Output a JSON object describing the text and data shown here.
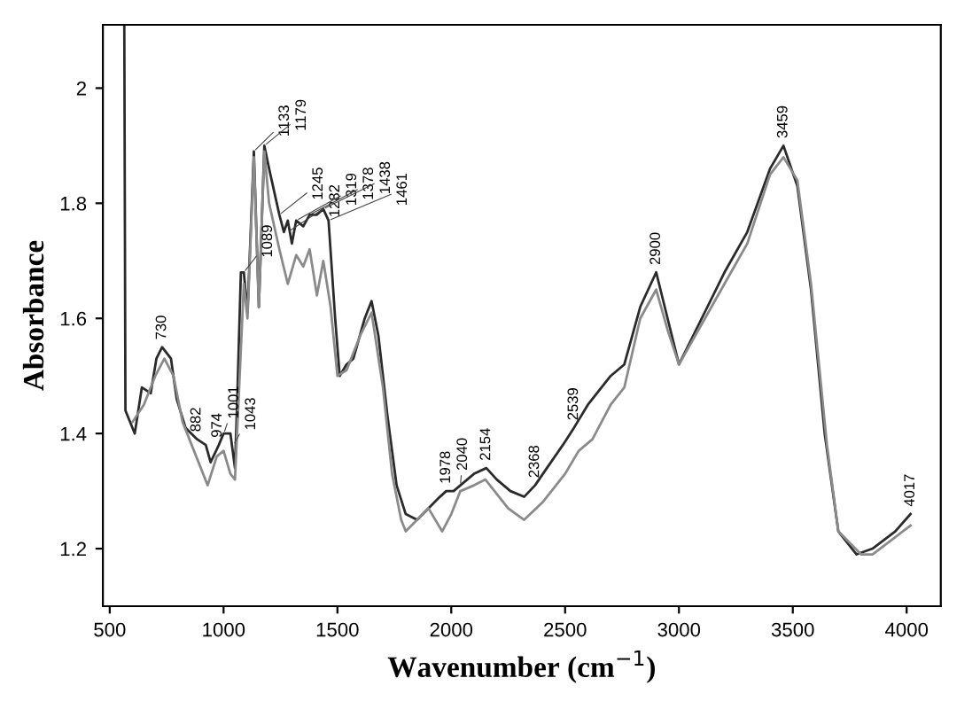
{
  "chart_data": {
    "type": "line",
    "xlabel": "Wavenumber (cm$^{−1}$)",
    "ylabel": "Absorbance",
    "xlim": [
      470,
      4150
    ],
    "ylim": [
      1.1,
      2.11
    ],
    "xticks": [
      500,
      1000,
      1500,
      2000,
      2500,
      3000,
      3500,
      4000
    ],
    "yticks": [
      1.2,
      1.4,
      1.6,
      1.8,
      2
    ],
    "grid": false,
    "legend": false,
    "marker": "none",
    "line_style": "solid",
    "series": [
      {
        "color": "#2a2a2a",
        "x": [
          564,
          569,
          610,
          641,
          680,
          705,
          730,
          769,
          794,
          833,
          884,
          922,
          943,
          979,
          1000,
          1030,
          1050,
          1060,
          1076,
          1089,
          1105,
          1133,
          1155,
          1179,
          1200,
          1245,
          1265,
          1282,
          1300,
          1319,
          1350,
          1378,
          1410,
          1438,
          1461,
          1490,
          1510,
          1540,
          1570,
          1620,
          1650,
          1680,
          1720,
          1760,
          1800,
          1850,
          1900,
          1950,
          1978,
          2010,
          2040,
          2100,
          2154,
          2200,
          2260,
          2320,
          2368,
          2420,
          2490,
          2539,
          2600,
          2700,
          2760,
          2830,
          2900,
          2950,
          3000,
          3100,
          3200,
          3300,
          3400,
          3459,
          3520,
          3580,
          3640,
          3700,
          3780,
          3850,
          3950,
          4017
        ],
        "values": [
          2.11,
          1.44,
          1.4,
          1.48,
          1.47,
          1.53,
          1.55,
          1.53,
          1.46,
          1.41,
          1.39,
          1.38,
          1.35,
          1.38,
          1.4,
          1.4,
          1.34,
          1.46,
          1.68,
          1.68,
          1.61,
          1.89,
          1.62,
          1.9,
          1.86,
          1.78,
          1.75,
          1.77,
          1.73,
          1.77,
          1.76,
          1.78,
          1.78,
          1.79,
          1.77,
          1.6,
          1.5,
          1.52,
          1.53,
          1.6,
          1.63,
          1.57,
          1.43,
          1.31,
          1.26,
          1.25,
          1.27,
          1.29,
          1.3,
          1.3,
          1.31,
          1.33,
          1.34,
          1.32,
          1.3,
          1.29,
          1.31,
          1.34,
          1.38,
          1.41,
          1.45,
          1.5,
          1.52,
          1.62,
          1.68,
          1.6,
          1.52,
          1.6,
          1.68,
          1.75,
          1.86,
          1.9,
          1.83,
          1.65,
          1.4,
          1.23,
          1.19,
          1.2,
          1.23,
          1.26
        ]
      },
      {
        "color": "#8a8a8a",
        "x": [
          600,
          650,
          700,
          740,
          780,
          820,
          870,
          930,
          970,
          1000,
          1030,
          1050,
          1065,
          1089,
          1105,
          1133,
          1155,
          1179,
          1200,
          1245,
          1282,
          1319,
          1350,
          1378,
          1410,
          1438,
          1470,
          1500,
          1540,
          1600,
          1650,
          1700,
          1740,
          1780,
          1800,
          1850,
          1900,
          1960,
          2000,
          2040,
          2100,
          2150,
          2250,
          2320,
          2400,
          2500,
          2560,
          2620,
          2700,
          2760,
          2830,
          2900,
          2950,
          3000,
          3100,
          3200,
          3300,
          3400,
          3459,
          3520,
          3580,
          3650,
          3700,
          3800,
          3850,
          3950,
          4017
        ],
        "values": [
          1.42,
          1.45,
          1.5,
          1.53,
          1.5,
          1.42,
          1.37,
          1.31,
          1.36,
          1.37,
          1.33,
          1.32,
          1.45,
          1.66,
          1.6,
          1.88,
          1.62,
          1.89,
          1.8,
          1.72,
          1.66,
          1.71,
          1.69,
          1.72,
          1.64,
          1.7,
          1.62,
          1.5,
          1.51,
          1.57,
          1.61,
          1.48,
          1.33,
          1.25,
          1.23,
          1.25,
          1.27,
          1.23,
          1.26,
          1.3,
          1.31,
          1.32,
          1.27,
          1.25,
          1.28,
          1.33,
          1.37,
          1.39,
          1.45,
          1.48,
          1.6,
          1.65,
          1.58,
          1.52,
          1.59,
          1.66,
          1.73,
          1.85,
          1.88,
          1.84,
          1.66,
          1.38,
          1.23,
          1.19,
          1.19,
          1.22,
          1.24
        ]
      }
    ],
    "annotations": [
      {
        "text": "730",
        "x": 730,
        "y": 1.55
      },
      {
        "text": "882",
        "x": 882,
        "y": 1.39
      },
      {
        "text": "974",
        "x": 974,
        "y": 1.38
      },
      {
        "text": "1001",
        "x": 1001,
        "y": 1.4
      },
      {
        "text": "1043",
        "x": 1043,
        "y": 1.38
      },
      {
        "text": "1089",
        "x": 1089,
        "y": 1.68
      },
      {
        "text": "1133",
        "x": 1133,
        "y": 1.89
      },
      {
        "text": "1179",
        "x": 1179,
        "y": 1.9
      },
      {
        "text": "1245",
        "x": 1245,
        "y": 1.78
      },
      {
        "text": "1282",
        "x": 1282,
        "y": 1.75
      },
      {
        "text": "1319",
        "x": 1319,
        "y": 1.77
      },
      {
        "text": "1378",
        "x": 1378,
        "y": 1.78
      },
      {
        "text": "1438",
        "x": 1438,
        "y": 1.79
      },
      {
        "text": "1461",
        "x": 1461,
        "y": 1.77
      },
      {
        "text": "1978",
        "x": 1978,
        "y": 1.3
      },
      {
        "text": "2040",
        "x": 2040,
        "y": 1.31
      },
      {
        "text": "2154",
        "x": 2154,
        "y": 1.34
      },
      {
        "text": "2368",
        "x": 2368,
        "y": 1.31
      },
      {
        "text": "2539",
        "x": 2539,
        "y": 1.41
      },
      {
        "text": "2900",
        "x": 2900,
        "y": 1.68
      },
      {
        "text": "3459",
        "x": 3459,
        "y": 1.9
      },
      {
        "text": "4017",
        "x": 4017,
        "y": 1.26
      }
    ]
  }
}
